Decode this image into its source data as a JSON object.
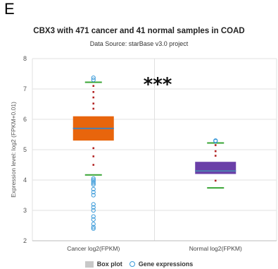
{
  "panel_letter": "E",
  "chart_data": {
    "type": "box",
    "title": "CBX3 with 471 cancer and 41 normal samples in COAD",
    "subtitle": "Data Source: starBase v3.0 project",
    "ylabel": "Expression level: log2 (FPKM+0.01)",
    "ylim": [
      2,
      8
    ],
    "yticks": [
      2,
      3,
      4,
      5,
      6,
      7,
      8
    ],
    "grid": true,
    "significance": "***",
    "categories": [
      "Cancer log2(FPKM)",
      "Normal log2(FPKM)"
    ],
    "boxes": [
      {
        "category": "Cancer log2(FPKM)",
        "min": 4.17,
        "q1": 5.3,
        "median": 5.7,
        "q3": 6.1,
        "max": 7.22,
        "color": "#e8650c",
        "whisker_points": [
          4.5,
          4.78,
          5.05,
          6.35,
          6.52,
          6.72,
          6.9,
          7.1
        ],
        "outliers": [
          7.37,
          7.3,
          4.05,
          4.0,
          3.95,
          3.9,
          3.85,
          3.7,
          3.6,
          3.5,
          3.2,
          3.1,
          3.0,
          2.8,
          2.7,
          2.55,
          2.45,
          2.4
        ]
      },
      {
        "category": "Normal log2(FPKM)",
        "min": 3.74,
        "q1": 4.2,
        "median": 4.3,
        "q3": 4.6,
        "max": 5.22,
        "color": "#6a3fa8",
        "whisker_points": [
          3.98,
          4.8,
          4.95,
          5.15
        ],
        "outliers": [
          5.28,
          5.3
        ]
      }
    ],
    "legend": [
      "Box plot",
      "Gene expressions"
    ],
    "colors": {
      "whisker": "#39a535",
      "median": "#4d7fb0",
      "dots": "#b22222",
      "outlier": "#3a9ad9",
      "grid": "#e0e0e0"
    }
  }
}
